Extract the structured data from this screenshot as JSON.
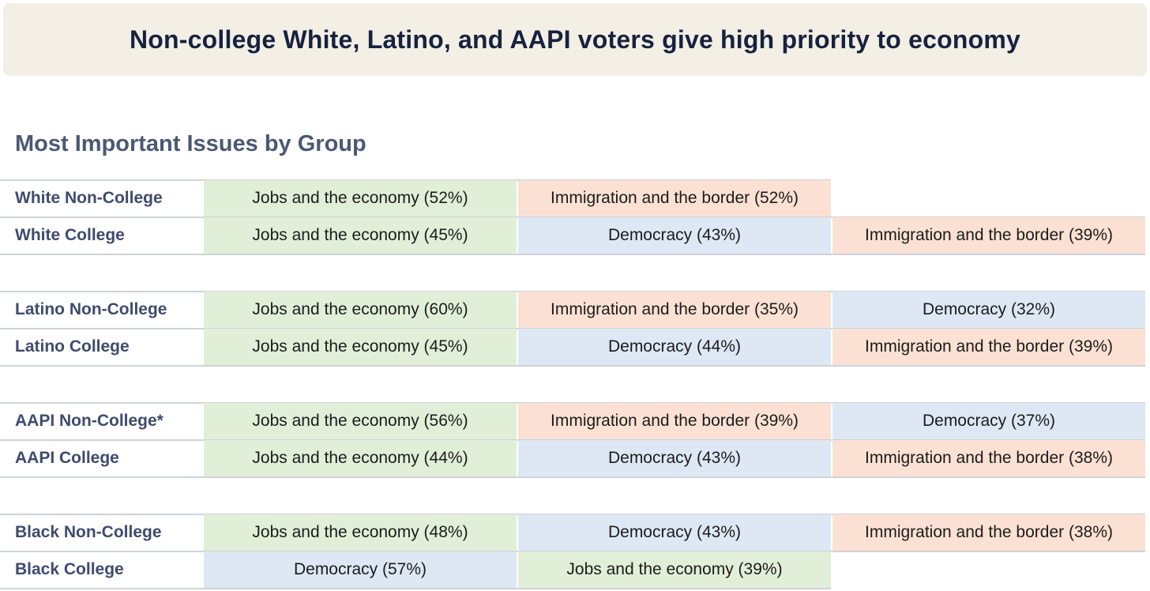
{
  "chart_data": {
    "type": "table",
    "title": "Non-college White, Latino, and AAPI voters give high priority to economy",
    "subtitle": "Most Important Issues by Group",
    "colors": {
      "economy": "#e2efd8",
      "immigration": "#fbe1d3",
      "democracy": "#dde8f4"
    },
    "blocks": [
      [
        {
          "group": "White Non-College",
          "cells": [
            {
              "label": "Jobs and the economy (52%)",
              "issue": "economy",
              "value": 52
            },
            {
              "label": "Immigration and the border (52%)",
              "issue": "immigration",
              "value": 52
            }
          ]
        },
        {
          "group": "White College",
          "cells": [
            {
              "label": "Jobs and the economy (45%)",
              "issue": "economy",
              "value": 45
            },
            {
              "label": "Democracy (43%)",
              "issue": "democracy",
              "value": 43
            },
            {
              "label": "Immigration and the border (39%)",
              "issue": "immigration",
              "value": 39
            }
          ]
        }
      ],
      [
        {
          "group": "Latino Non-College",
          "cells": [
            {
              "label": "Jobs and the economy (60%)",
              "issue": "economy",
              "value": 60
            },
            {
              "label": "Immigration and the border (35%)",
              "issue": "immigration",
              "value": 35
            },
            {
              "label": "Democracy (32%)",
              "issue": "democracy",
              "value": 32
            }
          ]
        },
        {
          "group": "Latino College",
          "cells": [
            {
              "label": "Jobs and the economy (45%)",
              "issue": "economy",
              "value": 45
            },
            {
              "label": "Democracy (44%)",
              "issue": "democracy",
              "value": 44
            },
            {
              "label": "Immigration and the border (39%)",
              "issue": "immigration",
              "value": 39
            }
          ]
        }
      ],
      [
        {
          "group": "AAPI Non-College*",
          "cells": [
            {
              "label": "Jobs and the economy (56%)",
              "issue": "economy",
              "value": 56
            },
            {
              "label": "Immigration and the border (39%)",
              "issue": "immigration",
              "value": 39
            },
            {
              "label": "Democracy (37%)",
              "issue": "democracy",
              "value": 37
            }
          ]
        },
        {
          "group": "AAPI College",
          "cells": [
            {
              "label": "Jobs and the economy (44%)",
              "issue": "economy",
              "value": 44
            },
            {
              "label": "Democracy (43%)",
              "issue": "democracy",
              "value": 43
            },
            {
              "label": "Immigration and the border (38%)",
              "issue": "immigration",
              "value": 38
            }
          ]
        }
      ],
      [
        {
          "group": "Black Non-College",
          "cells": [
            {
              "label": "Jobs and the economy (48%)",
              "issue": "economy",
              "value": 48
            },
            {
              "label": "Democracy (43%)",
              "issue": "democracy",
              "value": 43
            },
            {
              "label": "Immigration and the border (38%)",
              "issue": "immigration",
              "value": 38
            }
          ]
        },
        {
          "group": "Black College",
          "cells": [
            {
              "label": "Democracy (57%)",
              "issue": "democracy",
              "value": 57
            },
            {
              "label": "Jobs and the economy (39%)",
              "issue": "economy",
              "value": 39
            }
          ]
        }
      ]
    ]
  }
}
